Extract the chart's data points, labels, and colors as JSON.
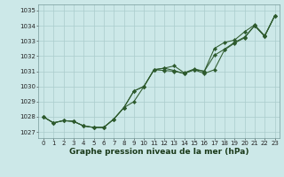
{
  "xlabel": "Graphe pression niveau de la mer (hPa)",
  "background_color": "#cce8e8",
  "grid_color": "#aacccc",
  "line_color": "#2d5a2d",
  "hours": [
    0,
    1,
    2,
    3,
    4,
    5,
    6,
    7,
    8,
    9,
    10,
    11,
    12,
    13,
    14,
    15,
    16,
    17,
    18,
    19,
    20,
    21,
    22,
    23
  ],
  "series1": [
    1028.0,
    1027.6,
    1027.75,
    1027.7,
    1027.4,
    1027.3,
    1027.3,
    1027.85,
    1028.6,
    1029.0,
    1030.0,
    1031.1,
    1031.05,
    1031.0,
    1030.85,
    1031.1,
    1030.85,
    1031.1,
    1032.4,
    1032.85,
    1033.2,
    1034.0,
    1033.3,
    1034.65
  ],
  "series2": [
    1028.0,
    1027.6,
    1027.75,
    1027.7,
    1027.4,
    1027.3,
    1027.3,
    1027.85,
    1028.6,
    1029.7,
    1030.0,
    1031.1,
    1031.2,
    1031.05,
    1030.85,
    1031.1,
    1031.0,
    1032.05,
    1032.45,
    1032.9,
    1033.25,
    1034.0,
    1033.3,
    1034.65
  ],
  "series3": [
    1028.0,
    1027.6,
    1027.75,
    1027.7,
    1027.4,
    1027.3,
    1027.3,
    1027.85,
    1028.6,
    1029.7,
    1030.0,
    1031.1,
    1031.2,
    1031.35,
    1030.9,
    1031.15,
    1031.0,
    1032.5,
    1032.9,
    1033.05,
    1033.6,
    1034.05,
    1033.35,
    1034.65
  ],
  "ylim_min": 1026.6,
  "ylim_max": 1035.4,
  "yticks": [
    1027,
    1028,
    1029,
    1030,
    1031,
    1032,
    1033,
    1034,
    1035
  ],
  "marker": "D",
  "markersize": 2.2,
  "linewidth": 0.75,
  "xlabel_fontsize": 6.5,
  "tick_fontsize": 5.0
}
